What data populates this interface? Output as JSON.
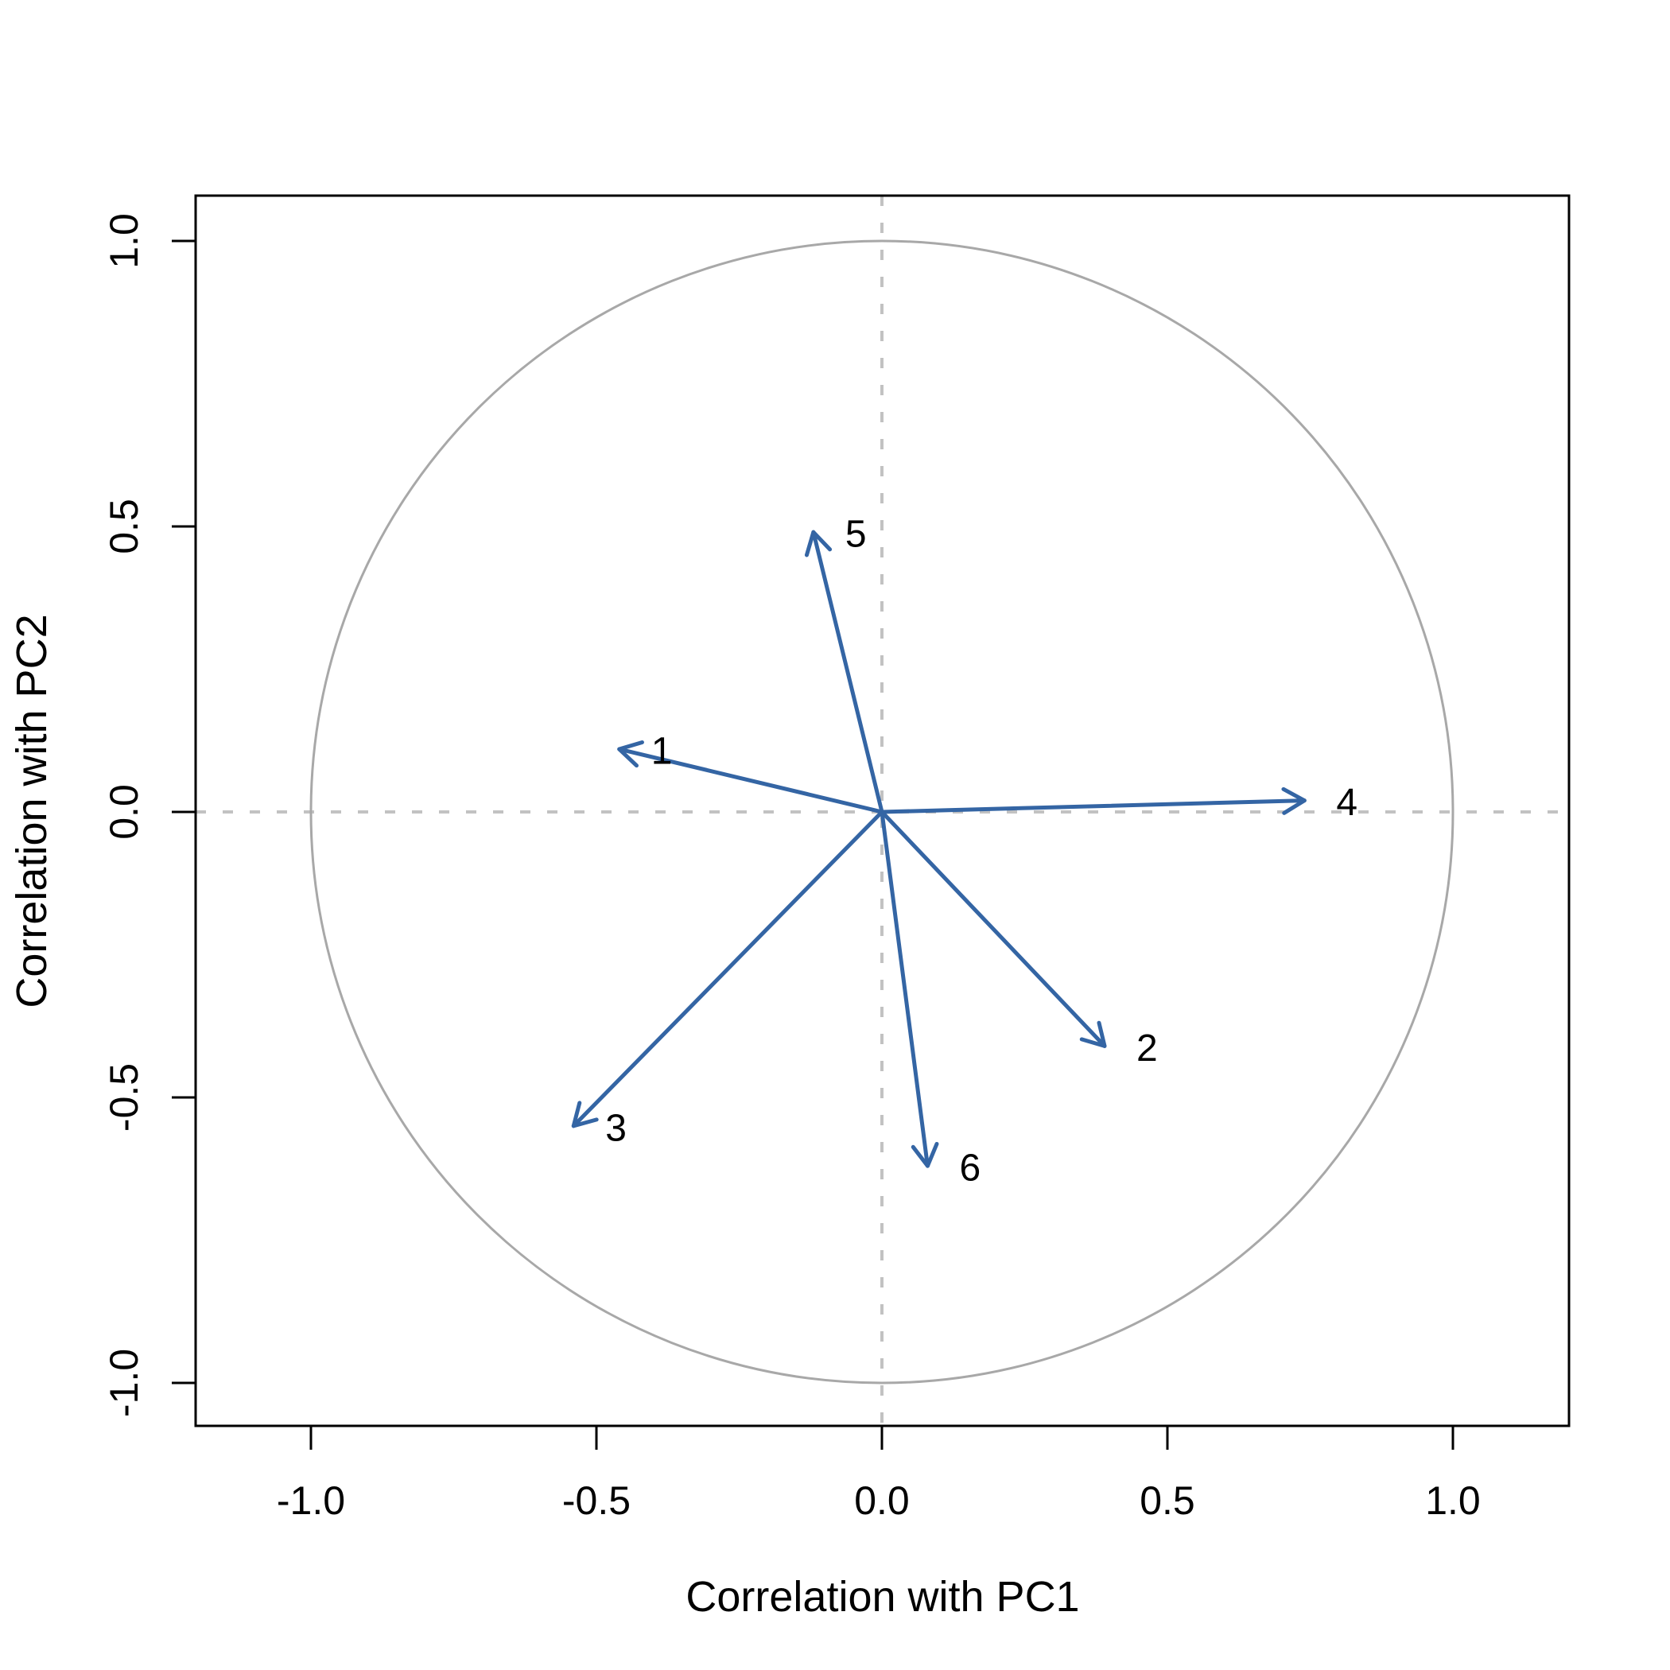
{
  "figure": {
    "background": "#ffffff"
  },
  "chart_data": {
    "type": "scatter",
    "subtype": "pca_correlation_circle_biplot",
    "title": "",
    "xlabel": "Correlation with PC1",
    "ylabel": "Correlation with PC2",
    "xlim": [
      -1.2,
      1.2
    ],
    "ylim": [
      -1.08,
      1.08
    ],
    "grid": false,
    "unit_circle": true,
    "zero_reference_lines": "dashed",
    "x_tick_values": [
      -1.0,
      -0.5,
      0.0,
      0.5,
      1.0
    ],
    "x_tick_labels": [
      "-1.0",
      "-0.5",
      "0.0",
      "0.5",
      "1.0"
    ],
    "y_tick_values": [
      -1.0,
      -0.5,
      0.0,
      0.5,
      1.0
    ],
    "y_tick_labels": [
      "-1.0",
      "-0.5",
      "0.0",
      "0.5",
      "1.0"
    ],
    "points": [
      {
        "label": "1",
        "x": -0.46,
        "y": 0.11
      },
      {
        "label": "2",
        "x": 0.39,
        "y": -0.41
      },
      {
        "label": "3",
        "x": -0.54,
        "y": -0.55
      },
      {
        "label": "4",
        "x": 0.74,
        "y": 0.02
      },
      {
        "label": "5",
        "x": -0.12,
        "y": 0.49
      },
      {
        "label": "6",
        "x": 0.08,
        "y": -0.62
      }
    ],
    "arrows_from_origin": true,
    "colors": {
      "arrow": "#3465A4",
      "unit_circle": "#A8A8A8",
      "dashed_line": "#C2C2C2",
      "axis": "#000000",
      "text": "#000000"
    }
  }
}
